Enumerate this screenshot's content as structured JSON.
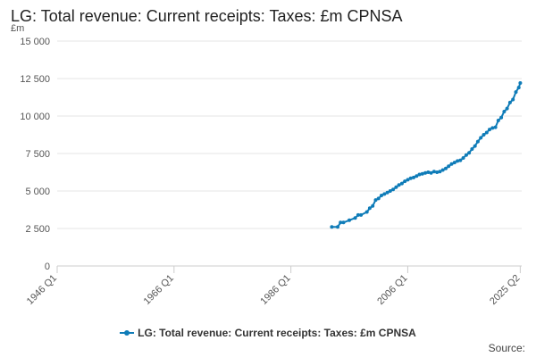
{
  "title": "LG: Total revenue: Current receipts: Taxes: £m CPNSA",
  "unit_label": "£m",
  "source_label": "Source:",
  "colors": {
    "series": "#0f7cb8",
    "grid": "#e6e6e6",
    "axis": "#cccccc",
    "tick_text": "#555555"
  },
  "chart_data": {
    "type": "line",
    "title": "LG: Total revenue: Current receipts: Taxes: £m CPNSA",
    "xlabel": "",
    "ylabel": "£m",
    "xlim": [
      1946,
      2025.5
    ],
    "ylim": [
      0,
      15000
    ],
    "grid": true,
    "legend_position": "bottom-center",
    "y_ticks": [
      0,
      2500,
      5000,
      7500,
      10000,
      12500,
      15000
    ],
    "y_tick_labels": [
      "0",
      "2 500",
      "5 000",
      "7 500",
      "10 000",
      "12 500",
      "15 000"
    ],
    "x_ticks": [
      1946,
      1966,
      1986,
      2006,
      2025.25
    ],
    "x_tick_labels": [
      "1946 Q1",
      "1966 Q1",
      "1986 Q1",
      "2006 Q1",
      "2025 Q2"
    ],
    "series": [
      {
        "name": "LG: Total revenue: Current receipts: Taxes: £m CPNSA",
        "points": [
          [
            1993.0,
            2600
          ],
          [
            1994.0,
            2600
          ],
          [
            1994.5,
            2900
          ],
          [
            1995.0,
            2900
          ],
          [
            1996.0,
            3050
          ],
          [
            1997.0,
            3200
          ],
          [
            1997.5,
            3400
          ],
          [
            1998.0,
            3400
          ],
          [
            1999.0,
            3600
          ],
          [
            1999.5,
            3850
          ],
          [
            2000.0,
            4000
          ],
          [
            2000.5,
            4400
          ],
          [
            2001.0,
            4500
          ],
          [
            2001.5,
            4700
          ],
          [
            2002.0,
            4800
          ],
          [
            2002.5,
            4900
          ],
          [
            2003.0,
            5000
          ],
          [
            2003.5,
            5100
          ],
          [
            2004.0,
            5250
          ],
          [
            2004.5,
            5400
          ],
          [
            2005.0,
            5500
          ],
          [
            2005.5,
            5650
          ],
          [
            2006.0,
            5750
          ],
          [
            2006.5,
            5850
          ],
          [
            2007.0,
            5900
          ],
          [
            2007.5,
            6000
          ],
          [
            2008.0,
            6100
          ],
          [
            2008.5,
            6150
          ],
          [
            2009.0,
            6200
          ],
          [
            2009.5,
            6250
          ],
          [
            2010.0,
            6200
          ],
          [
            2010.5,
            6300
          ],
          [
            2011.0,
            6250
          ],
          [
            2011.5,
            6300
          ],
          [
            2012.0,
            6400
          ],
          [
            2012.5,
            6500
          ],
          [
            2013.0,
            6650
          ],
          [
            2013.5,
            6800
          ],
          [
            2014.0,
            6900
          ],
          [
            2014.5,
            7000
          ],
          [
            2015.0,
            7050
          ],
          [
            2015.5,
            7200
          ],
          [
            2016.0,
            7400
          ],
          [
            2016.5,
            7550
          ],
          [
            2017.0,
            7800
          ],
          [
            2017.5,
            8000
          ],
          [
            2018.0,
            8300
          ],
          [
            2018.5,
            8550
          ],
          [
            2019.0,
            8750
          ],
          [
            2019.5,
            8900
          ],
          [
            2020.0,
            9100
          ],
          [
            2020.5,
            9200
          ],
          [
            2021.0,
            9250
          ],
          [
            2021.5,
            9700
          ],
          [
            2022.0,
            9900
          ],
          [
            2022.5,
            10300
          ],
          [
            2023.0,
            10500
          ],
          [
            2023.5,
            10900
          ],
          [
            2024.0,
            11100
          ],
          [
            2024.5,
            11600
          ],
          [
            2025.0,
            11900
          ],
          [
            2025.25,
            12200
          ]
        ]
      }
    ]
  }
}
